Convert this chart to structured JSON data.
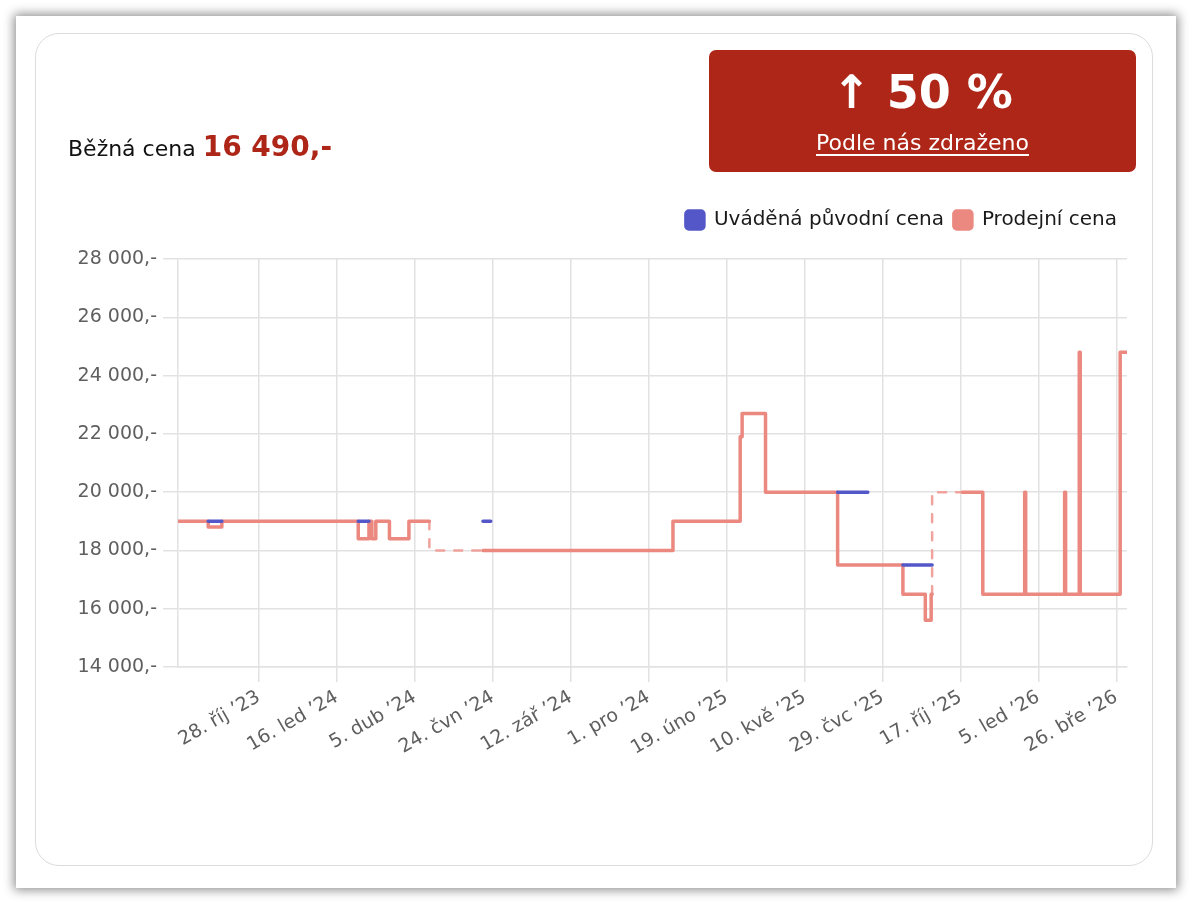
{
  "chart_data": {
    "type": "step",
    "annotations": [
      "Běžná cena",
      "16 490,-",
      "↑ 50 %",
      "Podle nás zdraženo"
    ],
    "xlim": [
      "2023-08-06",
      "2026-04-06"
    ],
    "xticks": [
      {
        "value": "2023-10-28",
        "label": "28. říj ’23"
      },
      {
        "value": "2024-01-16",
        "label": "16. led ’24"
      },
      {
        "value": "2024-04-05",
        "label": "5. dub ’24"
      },
      {
        "value": "2024-06-24",
        "label": "24. čvn ’24"
      },
      {
        "value": "2024-09-12",
        "label": "12. zář ’24"
      },
      {
        "value": "2024-12-01",
        "label": "1. pro ’24"
      },
      {
        "value": "2025-02-19",
        "label": "19. úno ’25"
      },
      {
        "value": "2025-05-10",
        "label": "10. kvě ’25"
      },
      {
        "value": "2025-07-29",
        "label": "29. čvc ’25"
      },
      {
        "value": "2025-10-17",
        "label": "17. říj ’25"
      },
      {
        "value": "2026-01-05",
        "label": "5. led ’26"
      },
      {
        "value": "2026-03-26",
        "label": "26. bře ’26"
      }
    ],
    "ylim": [
      14000,
      28000
    ],
    "yticks": [
      {
        "value": 14000,
        "label": "14 000,-"
      },
      {
        "value": 16000,
        "label": "16 000,-"
      },
      {
        "value": 18000,
        "label": "18 000,-"
      },
      {
        "value": 20000,
        "label": "20 000,-"
      },
      {
        "value": 22000,
        "label": "22 000,-"
      },
      {
        "value": 24000,
        "label": "24 000,-"
      },
      {
        "value": 26000,
        "label": "26 000,-"
      },
      {
        "value": 28000,
        "label": "28 000,-"
      }
    ],
    "grid": true,
    "legend": "top right",
    "series": [
      {
        "name": "Uváděná původní cena",
        "color": "#5457c8",
        "x": [
          "2023-09-06",
          "2023-09-20",
          "2023-12-01",
          "2024-02-07",
          "2024-02-18",
          "2024-04-01",
          "2024-06-14",
          "2024-06-22",
          "2025-01-01",
          "2025-06-13",
          "2025-07-14",
          "2025-08-01",
          "2025-08-19",
          "2025-09-18"
        ],
        "values": [
          19000,
          19000,
          null,
          19000,
          19000,
          null,
          19000,
          19000,
          null,
          20000,
          20000,
          null,
          17500,
          17500
        ]
      },
      {
        "name": "Prodejní cena",
        "color": "#eb8880",
        "x": [
          "2023-08-06",
          "2023-09-06",
          "2023-09-20",
          "2024-02-07",
          "2024-02-18",
          "2024-02-21",
          "2024-02-25",
          "2024-03-10",
          "2024-03-30",
          "2024-04-20",
          "2024-05-15",
          "2024-06-14",
          "2024-12-26",
          "2025-03-05",
          "2025-03-07",
          "2025-03-31",
          "2025-06-13",
          "2025-08-19",
          "2025-09-11",
          "2025-09-17",
          "2025-09-18",
          "2025-10-01",
          "2025-10-19",
          "2025-11-09",
          "2025-12-22",
          "2025-12-23",
          "2026-02-01",
          "2026-02-02",
          "2026-02-16",
          "2026-02-17",
          "2026-03-30",
          "2026-04-06"
        ],
        "values": [
          19000,
          18800,
          19000,
          18400,
          19000,
          18400,
          19000,
          18400,
          19000,
          19000,
          null,
          18000,
          19000,
          21900,
          22700,
          20000,
          17500,
          16500,
          15600,
          16500,
          16500,
          null,
          20000,
          16500,
          20000,
          16500,
          20000,
          16500,
          24800,
          16500,
          24800,
          24800
        ]
      },
      {
        "color": "#f0a39c",
        "line_style": "dashed",
        "x": [
          "2024-04-20",
          "2024-04-20",
          "2024-06-14",
          "2025-01-01",
          "2025-09-18",
          "2025-09-18",
          "2025-10-19"
        ],
        "values": [
          19000,
          18000,
          18000,
          null,
          16500,
          20000,
          20000
        ]
      }
    ]
  }
}
